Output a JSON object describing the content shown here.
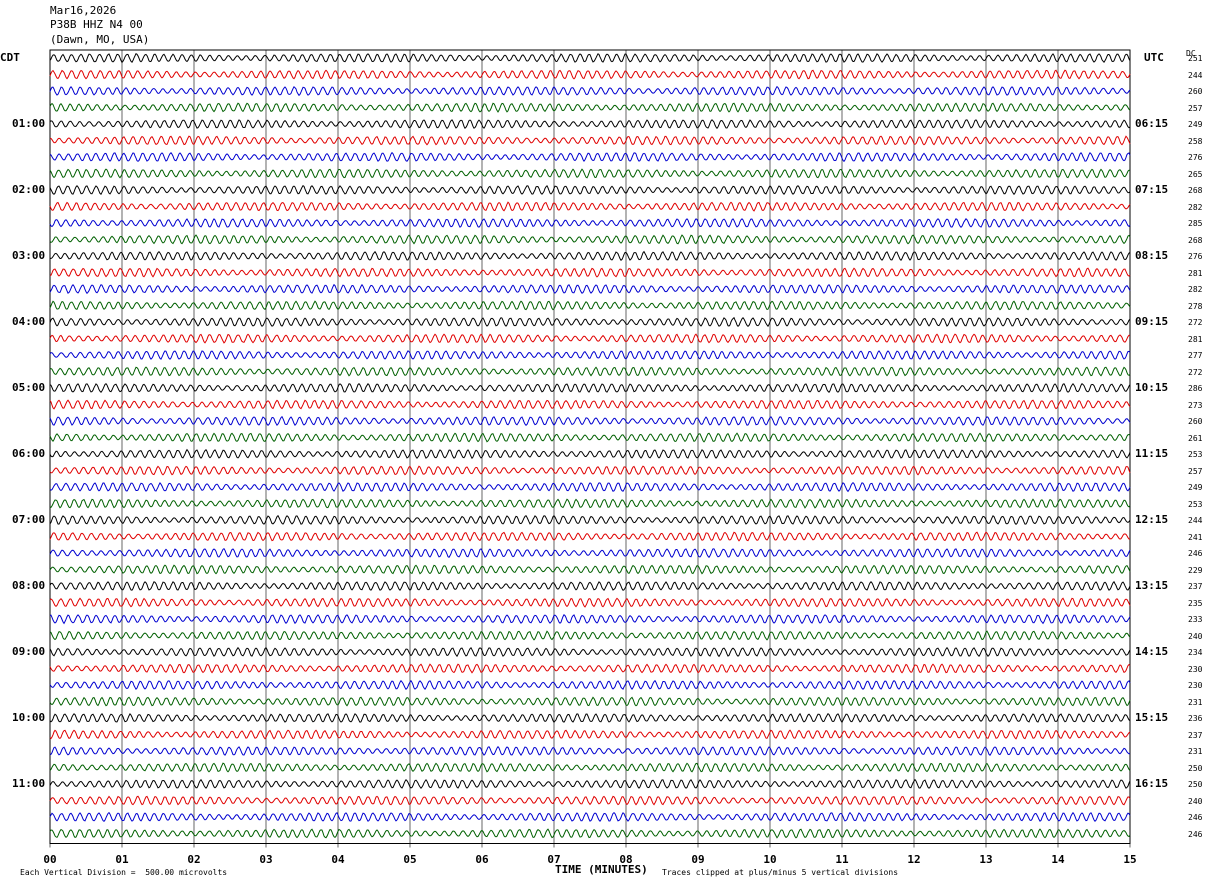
{
  "header": {
    "date": "Mar16,2026",
    "station": "P38B HHZ N4 00",
    "location": "(Dawn, MO, USA)"
  },
  "left_tz": "CDT",
  "right_tz": "UTC",
  "dc_label": "DC",
  "footer": {
    "scale": "Each Vertical Division =  500.00 microvolts",
    "xlabel": "TIME (MINUTES)",
    "clip_note": "Traces clipped at plus/minus 5 vertical divisions"
  },
  "colors": {
    "cycle": [
      "#000000",
      "#e00000",
      "#0000d0",
      "#006000"
    ],
    "grid": "#000000"
  },
  "chart_data": {
    "type": "line",
    "title": "Mar16,2026 P38B HHZ N4 00 (Dawn, MO, USA)",
    "xlabel": "TIME (MINUTES)",
    "xlim": [
      0,
      15
    ],
    "x_ticks": [
      "00",
      "01",
      "02",
      "03",
      "04",
      "05",
      "06",
      "07",
      "08",
      "09",
      "10",
      "11",
      "12",
      "13",
      "14",
      "15"
    ],
    "grid": "vertical lines at each minute",
    "trace_count": 48,
    "traces_per_hour": 4,
    "left_hour_labels": [
      "01:00",
      "02:00",
      "03:00",
      "04:00",
      "05:00",
      "06:00",
      "07:00",
      "08:00",
      "09:00",
      "10:00",
      "11:00"
    ],
    "right_hour_labels": [
      "06:15",
      "07:15",
      "08:15",
      "09:15",
      "10:15",
      "11:15",
      "12:15",
      "13:15",
      "14:15",
      "15:15",
      "16:15"
    ],
    "dc_offsets": [
      251,
      244,
      260,
      257,
      249,
      258,
      276,
      265,
      268,
      282,
      285,
      268,
      276,
      281,
      282,
      278,
      272,
      281,
      277,
      272,
      286,
      273,
      260,
      261,
      253,
      257,
      249,
      253,
      244,
      241,
      246,
      229,
      237,
      235,
      233,
      240,
      234,
      230,
      230,
      231,
      236,
      237,
      231,
      250,
      250,
      240,
      246,
      246
    ]
  }
}
